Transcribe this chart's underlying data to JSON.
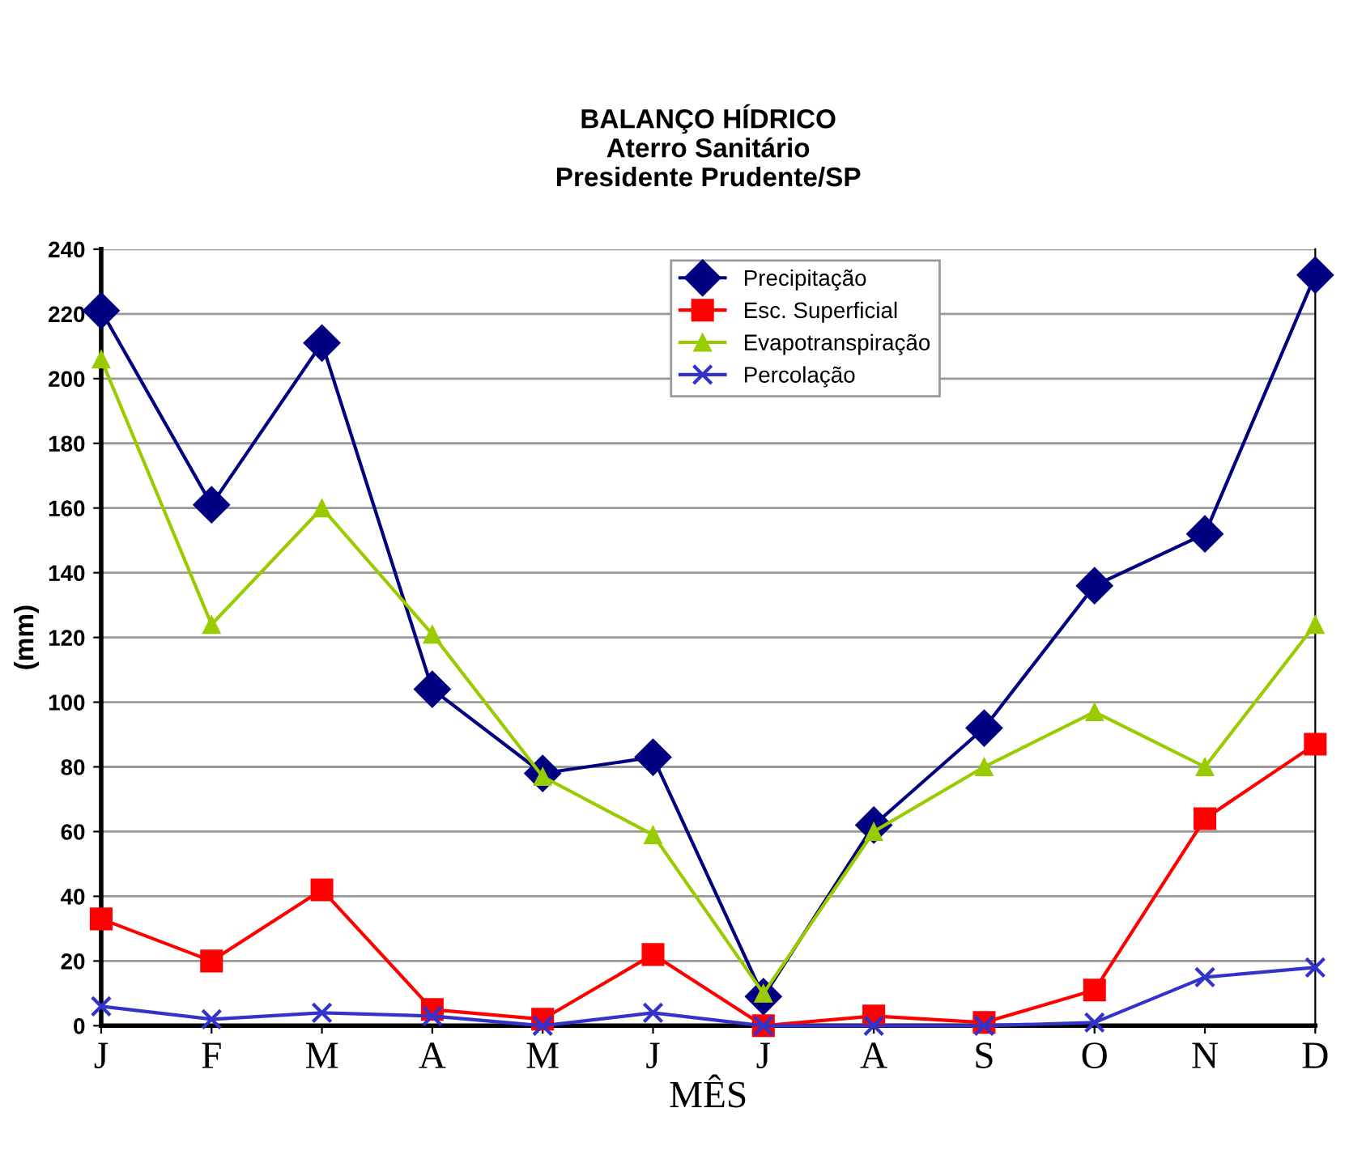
{
  "chart_data": {
    "type": "line",
    "title": "BALANÇO HÍDRICO\nAterro Sanitário\nPresidente Prudente/SP",
    "xlabel": "MÊS",
    "ylabel": "(mm)",
    "categories": [
      "J",
      "F",
      "M",
      "A",
      "M",
      "J",
      "J",
      "A",
      "S",
      "O",
      "N",
      "D"
    ],
    "series": [
      {
        "name": "Precipitação",
        "color": "#000080",
        "marker": "diamond",
        "values": [
          221,
          161,
          211,
          104,
          78,
          83,
          9,
          62,
          92,
          136,
          152,
          232
        ]
      },
      {
        "name": "Esc. Superficial",
        "color": "#ff0000",
        "marker": "square",
        "values": [
          33,
          20,
          42,
          5,
          2,
          22,
          0,
          3,
          1,
          11,
          64,
          87
        ]
      },
      {
        "name": "Evapotranspiração",
        "color": "#99cc00",
        "marker": "triangle",
        "values": [
          206,
          124,
          160,
          121,
          77,
          59,
          10,
          60,
          80,
          97,
          80,
          124
        ]
      },
      {
        "name": "Percolação",
        "color": "#3333cc",
        "marker": "cross",
        "values": [
          6,
          2,
          4,
          3,
          0,
          4,
          0,
          0,
          0,
          1,
          15,
          18
        ]
      }
    ],
    "ylim": [
      0,
      240
    ],
    "yticks": [
      0,
      20,
      40,
      60,
      80,
      100,
      120,
      140,
      160,
      180,
      200,
      220,
      240
    ],
    "grid": "y",
    "legend": "top",
    "line_style": "solid"
  }
}
